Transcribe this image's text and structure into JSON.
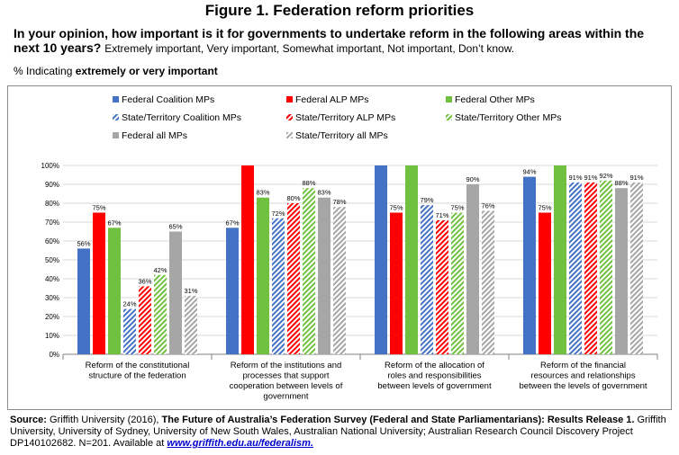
{
  "figure_title": "Figure 1. Federation reform priorities",
  "question": {
    "bold": "In your opinion, how important is it for governments to undertake reform in the following areas within the next 10 years?",
    "options": "Extremely important, Very important, Somewhat important, Not important, Don’t know."
  },
  "pct_note": {
    "prefix": "% Indicating ",
    "bold": "extremely or very important"
  },
  "source": {
    "label": "Source:",
    "text1": " Griffith University (2016), ",
    "title": "The Future of Australia’s Federation Survey (Federal and State Parliamentarians): Results Release 1.",
    "text2": " Griffith University, University of Sydney, University of New South Wales, Australian National University; Australian Research Council Discovery Project DP140102682.  N=201.  Available at ",
    "link": "www.griffith.edu.au/federalism."
  },
  "chart_data": {
    "type": "bar",
    "categories": [
      "Reform of the constitutional structure of the federation",
      "Reform of the institutions and processes that support cooperation between levels of government",
      "Reform of the allocation of roles and responsibilities between levels of government",
      "Reform of the financial resources and relationships between the levels of government"
    ],
    "ylim": [
      0,
      100
    ],
    "yticks": [
      "0%",
      "10%",
      "20%",
      "30%",
      "40%",
      "50%",
      "60%",
      "70%",
      "80%",
      "90%",
      "100%"
    ],
    "grid": true,
    "legend_position": "top",
    "series": [
      {
        "name": "Federal Coalition MPs",
        "color": "#4472c4",
        "pattern": "solid",
        "values": [
          56,
          67,
          100,
          94
        ],
        "labels": [
          "56%",
          "67%",
          "",
          "94%"
        ]
      },
      {
        "name": "Federal ALP MPs",
        "color": "#ff0000",
        "pattern": "solid",
        "values": [
          75,
          100,
          75,
          75
        ],
        "labels": [
          "75%",
          "",
          "75%",
          "75%"
        ]
      },
      {
        "name": "Federal Other MPs",
        "color": "#70c13f",
        "pattern": "solid",
        "values": [
          67,
          83,
          100,
          100
        ],
        "labels": [
          "67%",
          "83%",
          "",
          ""
        ]
      },
      {
        "name": "State/Territory Coalition MPs",
        "color": "#4472c4",
        "pattern": "hatched",
        "values": [
          24,
          72,
          79,
          91
        ],
        "labels": [
          "24%",
          "72%",
          "79%",
          "91%"
        ]
      },
      {
        "name": "State/Territory ALP MPs",
        "color": "#ff0000",
        "pattern": "hatched",
        "values": [
          36,
          80,
          71,
          91
        ],
        "labels": [
          "36%",
          "80%",
          "71%",
          "91%"
        ]
      },
      {
        "name": "State/Territory Other MPs",
        "color": "#70c13f",
        "pattern": "hatched",
        "values": [
          42,
          88,
          75,
          92
        ],
        "labels": [
          "42%",
          "88%",
          "75%",
          "92%"
        ]
      },
      {
        "name": "Federal all MPs",
        "color": "#a6a6a6",
        "pattern": "solid",
        "values": [
          65,
          83,
          90,
          88
        ],
        "labels": [
          "65%",
          "83%",
          "90%",
          "88%"
        ]
      },
      {
        "name": "State/Territory all MPs",
        "color": "#a6a6a6",
        "pattern": "hatched",
        "values": [
          31,
          78,
          76,
          91
        ],
        "labels": [
          "31%",
          "78%",
          "76%",
          "91%"
        ]
      }
    ]
  }
}
